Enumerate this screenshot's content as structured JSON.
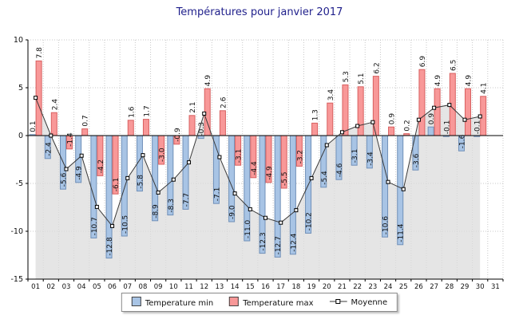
{
  "legend": {
    "min": "Temperature min",
    "max": "Temperature max",
    "avg": "Moyenne"
  },
  "chart_data": {
    "type": "bar",
    "title": "Températures pour janvier 2017",
    "xlabel": "",
    "ylabel": "",
    "ylim": [
      -15,
      10
    ],
    "yticks": [
      10,
      5,
      0,
      -5,
      -10,
      -15
    ],
    "grid": true,
    "legend_position": "bottom",
    "categories": [
      "01",
      "02",
      "03",
      "04",
      "05",
      "06",
      "07",
      "08",
      "09",
      "10",
      "11",
      "12",
      "13",
      "14",
      "15",
      "16",
      "17",
      "18",
      "19",
      "20",
      "21",
      "22",
      "23",
      "24",
      "25",
      "26",
      "27",
      "28",
      "29",
      "30",
      "31"
    ],
    "series": [
      {
        "name": "Temperature min",
        "type": "bar",
        "values": [
          0.1,
          -2.4,
          -5.6,
          -4.9,
          -10.7,
          -12.8,
          -10.5,
          -5.8,
          -8.9,
          -8.3,
          -7.7,
          -0.3,
          -7.1,
          -9.0,
          -11.0,
          -12.3,
          -12.7,
          -12.4,
          -10.2,
          -5.4,
          -4.6,
          -3.1,
          -3.4,
          -10.6,
          -11.4,
          -3.6,
          0.9,
          -0.1,
          -1.6,
          -0.1,
          null
        ]
      },
      {
        "name": "Temperature max",
        "type": "bar",
        "values": [
          7.8,
          2.4,
          -1.4,
          0.7,
          -4.2,
          -6.1,
          1.6,
          1.7,
          -3.0,
          -0.9,
          2.1,
          4.9,
          2.6,
          -3.1,
          -4.4,
          -4.9,
          -5.5,
          -3.2,
          1.3,
          3.4,
          5.3,
          5.1,
          6.2,
          0.9,
          0.2,
          6.9,
          4.9,
          6.5,
          4.9,
          4.1,
          null
        ]
      },
      {
        "name": "Moyenne",
        "type": "line",
        "values": [
          3.95,
          0.0,
          -3.5,
          -2.1,
          -7.45,
          -9.45,
          -4.45,
          -2.05,
          -5.95,
          -4.6,
          -2.8,
          2.3,
          -2.25,
          -6.05,
          -7.7,
          -8.6,
          -9.1,
          -7.8,
          -4.45,
          -1.0,
          0.35,
          1.0,
          1.4,
          -4.85,
          -5.6,
          1.65,
          2.9,
          3.2,
          1.65,
          2.0,
          null
        ]
      }
    ],
    "colors": {
      "min_fill": "#a8c4e5",
      "min_stroke": "#7090b8",
      "max_fill": "#f89898",
      "max_stroke": "#d86060",
      "avg_line": "#3a3a3a",
      "avg_fill": "#dcdcdc",
      "grid": "#c8c8c8",
      "axis": "#000000",
      "title": "#1f1f8b"
    }
  }
}
